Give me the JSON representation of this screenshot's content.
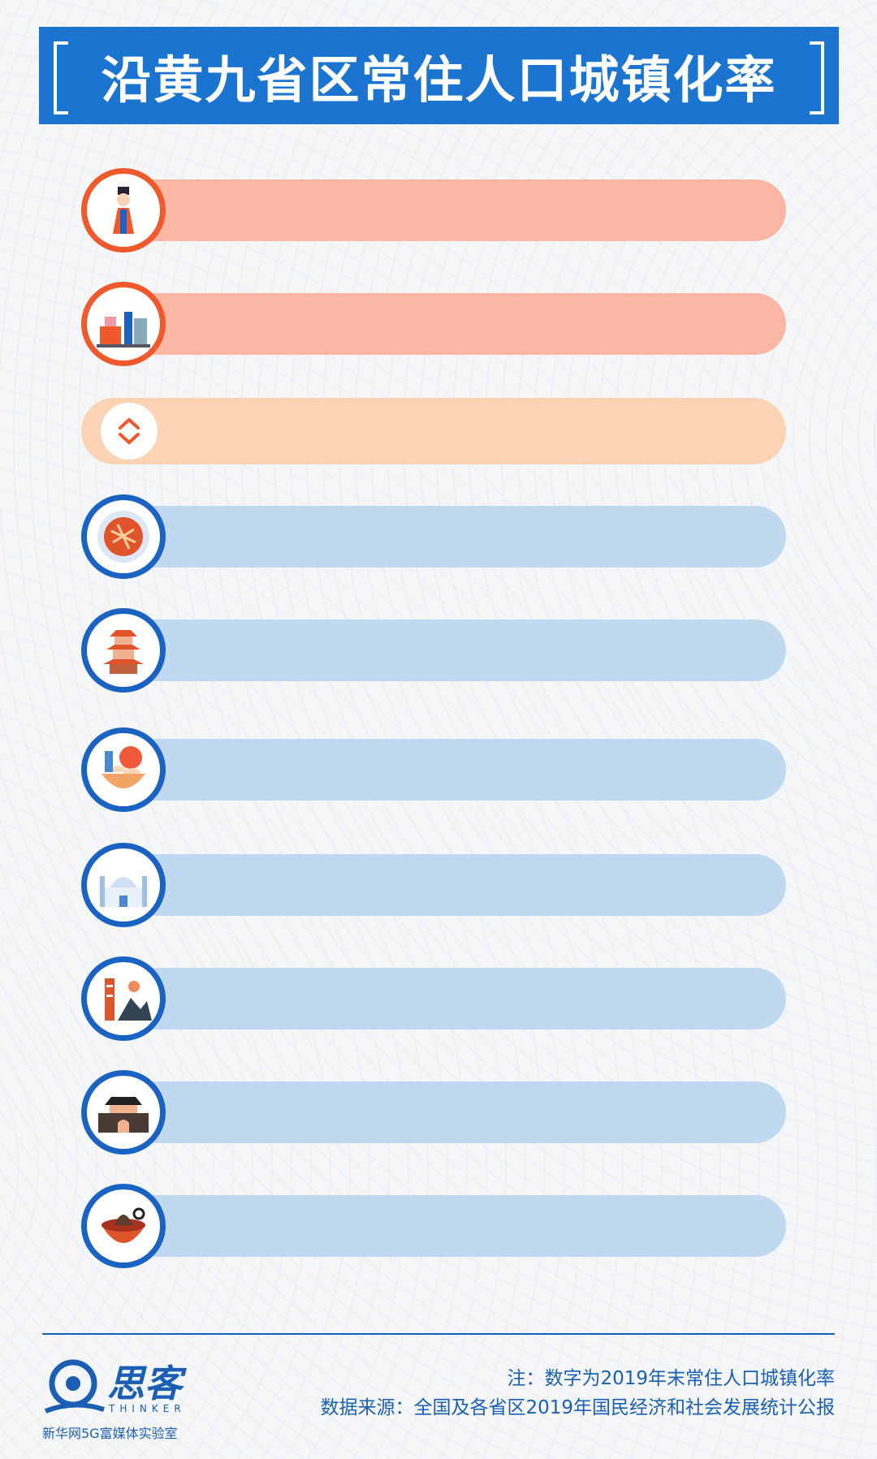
{
  "title": "沿黄九省区常住人口城镇化率",
  "chart_data": {
    "type": "bar",
    "orientation": "horizontal",
    "title": "沿黄九省区常住人口城镇化率",
    "rows": [
      {
        "icon": "mongolian-figure-icon",
        "group": "highlight",
        "value": null
      },
      {
        "icon": "city-skyline-icon",
        "group": "highlight",
        "value": null
      },
      {
        "icon": "expand-toggle-icon",
        "group": "selected",
        "value": null
      },
      {
        "icon": "food-plate-icon",
        "group": "normal",
        "value": null
      },
      {
        "icon": "pagoda-tower-icon",
        "group": "normal",
        "value": null
      },
      {
        "icon": "dumplings-bowl-icon",
        "group": "normal",
        "value": null
      },
      {
        "icon": "mosque-icon",
        "group": "normal",
        "value": null
      },
      {
        "icon": "pagoda-mountain-icon",
        "group": "normal",
        "value": null
      },
      {
        "icon": "city-gate-icon",
        "group": "normal",
        "value": null
      },
      {
        "icon": "hotpot-bowl-icon",
        "group": "normal",
        "value": null
      }
    ],
    "colors": {
      "highlight_bar": "#fbb7a3",
      "highlight_ring": "#f0592b",
      "selected_bar": "#fcd3b4",
      "normal_bar": "#c1d8f1",
      "normal_ring": "#1a63c2",
      "title_bg": "#1a74d0"
    }
  },
  "footer": {
    "logo_name": "思客",
    "logo_en": "THINKER",
    "logo_sub": "新华网5G富媒体实验室",
    "note": "注：数字为2019年末常住人口城镇化率",
    "source": "数据来源：全国及各省区2019年国民经济和社会发展统计公报"
  }
}
